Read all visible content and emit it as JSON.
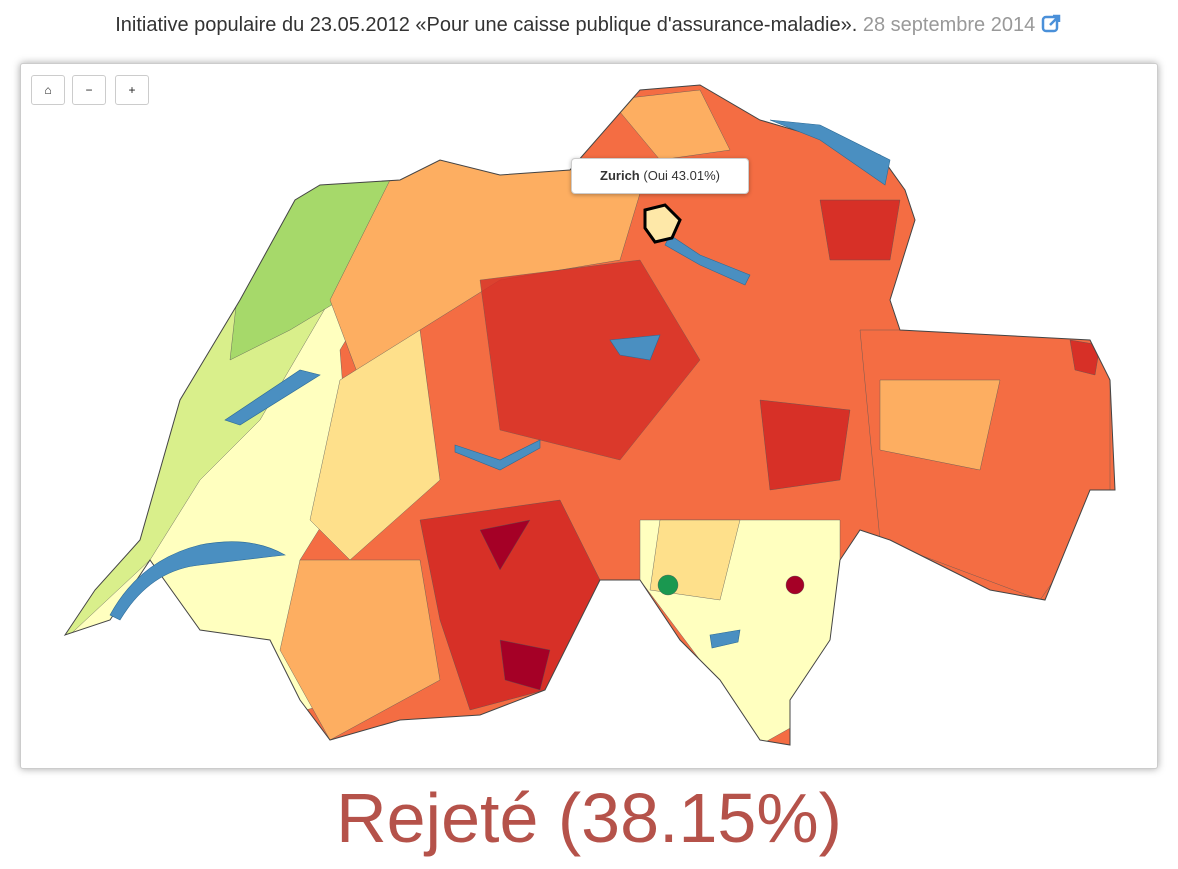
{
  "header": {
    "title": "Initiative populaire du 23.05.2012 «Pour une caisse publique d'assurance-maladie».",
    "date": "28 septembre 2014"
  },
  "tooltip": {
    "name": "Zurich",
    "detail": "(Oui 43.01%)"
  },
  "result": "Rejeté (38.15%)"
}
